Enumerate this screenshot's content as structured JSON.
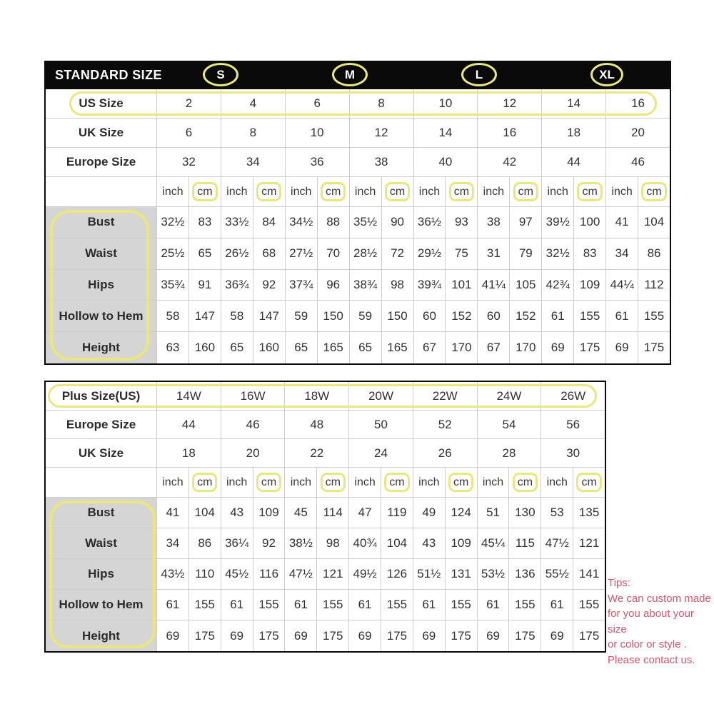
{
  "colors": {
    "highlight": "#e9e77d",
    "header_bg": "#0a0a0a",
    "label_cell_bg": "#d5d5d5",
    "tips_text": "#d8566b"
  },
  "chart_data": [
    {
      "type": "table",
      "title": "STANDARD SIZE",
      "size_groups": [
        "S",
        "M",
        "L",
        "XL"
      ],
      "header_rows": [
        {
          "label": "US Size",
          "highlighted": true,
          "values": [
            "2",
            "4",
            "6",
            "8",
            "10",
            "12",
            "14",
            "16"
          ]
        },
        {
          "label": "UK Size",
          "highlighted": false,
          "values": [
            "6",
            "8",
            "10",
            "12",
            "14",
            "16",
            "18",
            "20"
          ]
        },
        {
          "label": "Europe Size",
          "highlighted": false,
          "values": [
            "32",
            "34",
            "36",
            "38",
            "40",
            "42",
            "44",
            "46"
          ]
        }
      ],
      "unit_row": [
        "inch",
        "cm",
        "inch",
        "cm",
        "inch",
        "cm",
        "inch",
        "cm",
        "inch",
        "cm",
        "inch",
        "cm",
        "inch",
        "cm",
        "inch",
        "cm"
      ],
      "body_rows": [
        {
          "label": "Bust",
          "values": [
            "32½",
            "83",
            "33½",
            "84",
            "34½",
            "88",
            "35½",
            "90",
            "36½",
            "93",
            "38",
            "97",
            "39½",
            "100",
            "41",
            "104"
          ]
        },
        {
          "label": "Waist",
          "values": [
            "25½",
            "65",
            "26½",
            "68",
            "27½",
            "70",
            "28½",
            "72",
            "29½",
            "75",
            "31",
            "79",
            "32½",
            "83",
            "34",
            "86"
          ]
        },
        {
          "label": "Hips",
          "values": [
            "35¾",
            "91",
            "36¾",
            "92",
            "37¾",
            "96",
            "38¾",
            "98",
            "39¾",
            "101",
            "41¼",
            "105",
            "42¾",
            "109",
            "44¼",
            "112"
          ]
        },
        {
          "label": "Hollow to Hem",
          "values": [
            "58",
            "147",
            "58",
            "147",
            "59",
            "150",
            "59",
            "150",
            "60",
            "152",
            "60",
            "152",
            "61",
            "155",
            "61",
            "155"
          ]
        },
        {
          "label": "Height",
          "values": [
            "63",
            "160",
            "65",
            "160",
            "65",
            "165",
            "65",
            "165",
            "67",
            "170",
            "67",
            "170",
            "69",
            "175",
            "69",
            "175"
          ]
        }
      ],
      "labels_highlighted": true,
      "highlighted_unit": "cm"
    },
    {
      "type": "table",
      "title": "",
      "size_groups": [],
      "header_rows": [
        {
          "label": "Plus Size(US)",
          "highlighted": true,
          "values": [
            "14W",
            "16W",
            "18W",
            "20W",
            "22W",
            "24W",
            "26W"
          ]
        },
        {
          "label": "Europe Size",
          "highlighted": false,
          "values": [
            "44",
            "46",
            "48",
            "50",
            "52",
            "54",
            "56"
          ]
        },
        {
          "label": "UK Size",
          "highlighted": false,
          "values": [
            "18",
            "20",
            "22",
            "24",
            "26",
            "28",
            "30"
          ]
        }
      ],
      "unit_row": [
        "inch",
        "cm",
        "inch",
        "cm",
        "inch",
        "cm",
        "inch",
        "cm",
        "inch",
        "cm",
        "inch",
        "cm",
        "inch",
        "cm"
      ],
      "body_rows": [
        {
          "label": "Bust",
          "values": [
            "41",
            "104",
            "43",
            "109",
            "45",
            "114",
            "47",
            "119",
            "49",
            "124",
            "51",
            "130",
            "53",
            "135"
          ]
        },
        {
          "label": "Waist",
          "values": [
            "34",
            "86",
            "36¼",
            "92",
            "38½",
            "98",
            "40¾",
            "104",
            "43",
            "109",
            "45¼",
            "115",
            "47½",
            "121"
          ]
        },
        {
          "label": "Hips",
          "values": [
            "43½",
            "110",
            "45½",
            "116",
            "47½",
            "121",
            "49½",
            "126",
            "51½",
            "131",
            "53½",
            "136",
            "55½",
            "141"
          ]
        },
        {
          "label": "Hollow to Hem",
          "values": [
            "61",
            "155",
            "61",
            "155",
            "61",
            "155",
            "61",
            "155",
            "61",
            "155",
            "61",
            "155",
            "61",
            "155"
          ]
        },
        {
          "label": "Height",
          "values": [
            "69",
            "175",
            "69",
            "175",
            "69",
            "175",
            "69",
            "175",
            "69",
            "175",
            "69",
            "175",
            "69",
            "175"
          ]
        }
      ],
      "labels_highlighted": true,
      "highlighted_unit": "cm"
    }
  ],
  "tips": {
    "title": "Tips:",
    "lines": [
      "We can custom made",
      "for you about your size",
      "or color or style .",
      "Please contact us."
    ]
  }
}
